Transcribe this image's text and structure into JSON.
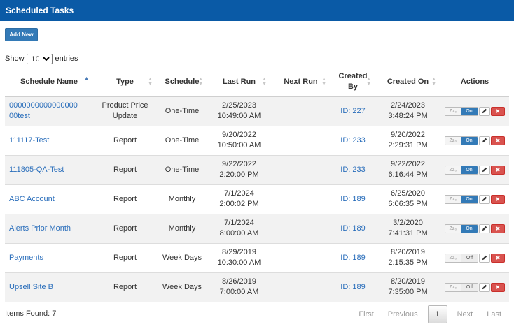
{
  "header": {
    "title": "Scheduled Tasks"
  },
  "toolbar": {
    "add_label": "Add New"
  },
  "length": {
    "show_label": "Show",
    "selected": "10",
    "entries_label": "entries"
  },
  "table": {
    "columns": [
      "Schedule Name",
      "Type",
      "Schedule",
      "Last Run",
      "Next Run",
      "Created By",
      "Created On",
      "Actions"
    ],
    "created_by_lines": [
      "Created",
      "By"
    ],
    "rows": [
      {
        "name_l1": "0000000000000000",
        "name_l2": "00test",
        "type_l1": "Product Price",
        "type_l2": "Update",
        "schedule": "One-Time",
        "last_run_l1": "2/25/2023",
        "last_run_l2": "10:49:00 AM",
        "next_run": "",
        "created_by": "ID: 227",
        "created_on_l1": "2/24/2023",
        "created_on_l2": "3:48:24 PM",
        "status": "On"
      },
      {
        "name_l1": "111117-Test",
        "name_l2": "",
        "type_l1": "Report",
        "type_l2": "",
        "schedule": "One-Time",
        "last_run_l1": "9/20/2022",
        "last_run_l2": "10:50:00 AM",
        "next_run": "",
        "created_by": "ID: 233",
        "created_on_l1": "9/20/2022",
        "created_on_l2": "2:29:31 PM",
        "status": "On"
      },
      {
        "name_l1": "111805-QA-Test",
        "name_l2": "",
        "type_l1": "Report",
        "type_l2": "",
        "schedule": "One-Time",
        "last_run_l1": "9/22/2022",
        "last_run_l2": "2:20:00 PM",
        "next_run": "",
        "created_by": "ID: 233",
        "created_on_l1": "9/22/2022",
        "created_on_l2": "6:16:44 PM",
        "status": "On"
      },
      {
        "name_l1": "ABC Account",
        "name_l2": "",
        "type_l1": "Report",
        "type_l2": "",
        "schedule": "Monthly",
        "last_run_l1": "7/1/2024",
        "last_run_l2": "2:00:02 PM",
        "next_run": "",
        "created_by": "ID: 189",
        "created_on_l1": "6/25/2020",
        "created_on_l2": "6:06:35 PM",
        "status": "On"
      },
      {
        "name_l1": "Alerts Prior Month",
        "name_l2": "",
        "type_l1": "Report",
        "type_l2": "",
        "schedule": "Monthly",
        "last_run_l1": "7/1/2024",
        "last_run_l2": "8:00:00 AM",
        "next_run": "",
        "created_by": "ID: 189",
        "created_on_l1": "3/2/2020",
        "created_on_l2": "7:41:31 PM",
        "status": "On"
      },
      {
        "name_l1": "Payments",
        "name_l2": "",
        "type_l1": "Report",
        "type_l2": "",
        "schedule": "Week Days",
        "last_run_l1": "8/29/2019",
        "last_run_l2": "10:30:00 AM",
        "next_run": "",
        "created_by": "ID: 189",
        "created_on_l1": "8/20/2019",
        "created_on_l2": "2:15:35 PM",
        "status": "Off"
      },
      {
        "name_l1": "Upsell Site B",
        "name_l2": "",
        "type_l1": "Report",
        "type_l2": "",
        "schedule": "Week Days",
        "last_run_l1": "8/26/2019",
        "last_run_l2": "7:00:00 AM",
        "next_run": "",
        "created_by": "ID: 189",
        "created_on_l1": "8/20/2019",
        "created_on_l2": "7:35:00 PM",
        "status": "Off"
      }
    ],
    "sleep_label": "Zz₀",
    "delete_glyph": "✖"
  },
  "footer": {
    "items_found": "Items Found: 7",
    "pager": {
      "first": "First",
      "previous": "Previous",
      "current": "1",
      "next": "Next",
      "last": "Last"
    }
  },
  "colors": {
    "header_bg": "#0a5aa6",
    "primary": "#337ab7",
    "danger": "#d9534f",
    "link": "#2a6ebb"
  },
  "icons": [
    "sort-asc-icon",
    "sort-icon",
    "sleep-icon",
    "pencil-icon",
    "delete-icon"
  ]
}
